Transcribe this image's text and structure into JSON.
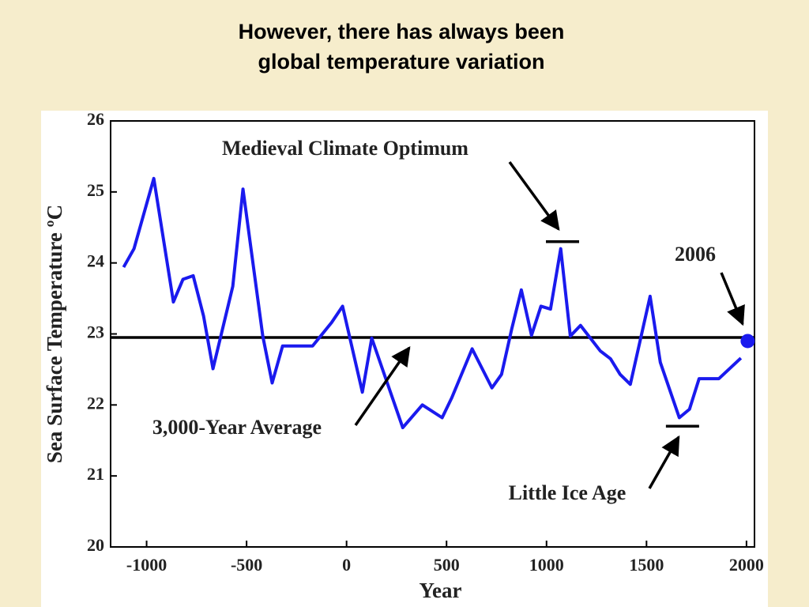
{
  "chart_data": {
    "type": "line",
    "title_lines": [
      "However, there has always been",
      "global temperature variation"
    ],
    "x_label": "Year",
    "y_label": "Sea Surface Temperature ºC",
    "x": [
      -1115,
      -1063,
      -964,
      -866,
      -818,
      -767,
      -715,
      -668,
      -569,
      -518,
      -419,
      -372,
      -320,
      -170,
      -75,
      -20,
      79,
      126,
      281,
      379,
      478,
      526,
      628,
      727,
      775,
      826,
      874,
      925,
      972,
      1020,
      1071,
      1119,
      1170,
      1269,
      1320,
      1368,
      1419,
      1518,
      1569,
      1664,
      1715,
      1763,
      1862,
      1972
    ],
    "series": [
      {
        "color": "#1a1aee",
        "values": [
          23.94,
          24.2,
          25.19,
          23.45,
          23.77,
          23.82,
          23.25,
          22.51,
          23.67,
          25.04,
          22.97,
          22.31,
          22.83,
          22.83,
          23.16,
          23.39,
          22.18,
          22.94,
          21.68,
          22.0,
          21.82,
          22.1,
          22.79,
          22.24,
          22.43,
          23.07,
          23.62,
          22.98,
          23.39,
          23.35,
          24.2,
          22.97,
          23.12,
          22.76,
          22.65,
          22.43,
          22.29,
          23.53,
          22.6,
          21.82,
          21.94,
          22.37,
          22.37,
          22.66
        ]
      }
    ],
    "reference_line": {
      "value": 22.95,
      "label": "3,000-Year Average"
    },
    "highlight_point": {
      "x": 2006,
      "y": 22.9,
      "label": "2006",
      "color": "#1a1aee"
    },
    "annotations": [
      {
        "label": "Medieval Climate Optimum",
        "x": 1080,
        "y": 24.3
      },
      {
        "label": "Little Ice Age",
        "x": 1680,
        "y": 21.7
      }
    ],
    "xlim": [
      -1180,
      2040
    ],
    "ylim": [
      20,
      26
    ],
    "xticks": [
      -1000,
      -500,
      0,
      500,
      1000,
      1500,
      2000
    ],
    "yticks": [
      20,
      21,
      22,
      23,
      24,
      25,
      26
    ]
  }
}
